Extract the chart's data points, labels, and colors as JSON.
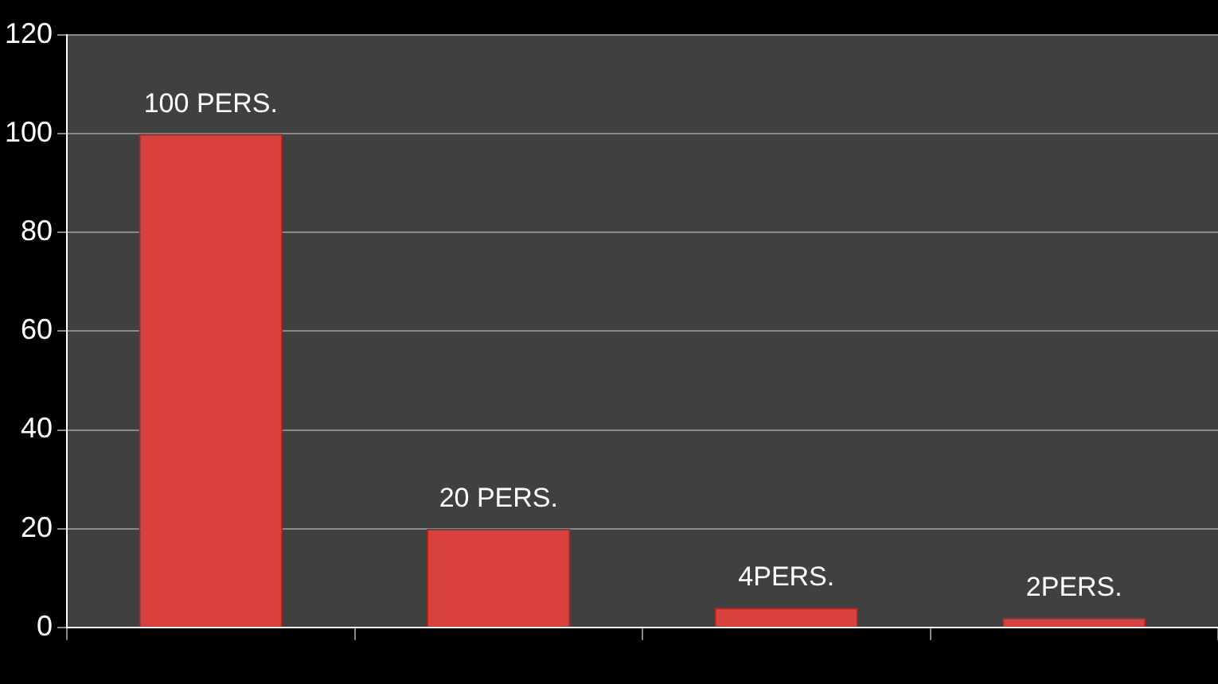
{
  "chart_data": {
    "type": "bar",
    "categories": [
      null,
      null,
      null,
      null
    ],
    "values": [
      100,
      20,
      4,
      2
    ],
    "value_labels": [
      "100 PERS.",
      "20 PERS.",
      "4PERS.",
      "2PERS."
    ],
    "color": "#d9413c",
    "ylim": [
      0,
      120
    ],
    "yticks": [
      0,
      20,
      40,
      60,
      80,
      100,
      120
    ],
    "grid": "y",
    "legend": false
  }
}
